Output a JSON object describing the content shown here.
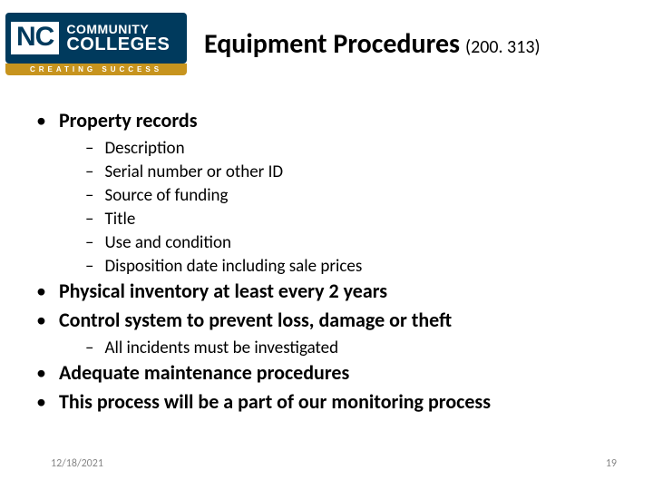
{
  "logo": {
    "nc": "NC",
    "line1": "COMMUNITY",
    "line2": "COLLEGES",
    "tagline": "CREATING SUCCESS",
    "bg_color": "#003a5d",
    "tagline_bg": "#c7941e",
    "text_color": "#ffffff"
  },
  "title": {
    "main": "Equipment Procedures",
    "code": "(200. 313)",
    "fontsize_main": 30,
    "fontsize_code": 20,
    "fontweight_main": 700
  },
  "bullets": {
    "b1": {
      "text": "Property records",
      "subs": [
        "Description",
        "Serial number or other ID",
        "Source of funding",
        "Title",
        "Use and condition",
        "Disposition date including sale prices"
      ]
    },
    "b2": {
      "text": "Physical inventory at least every 2 years"
    },
    "b3": {
      "text": "Control system to prevent loss, damage or theft",
      "subs": [
        "All incidents must be investigated"
      ]
    },
    "b4": {
      "text": "Adequate maintenance procedures"
    },
    "b5": {
      "text": "This process will be a part of our monitoring process"
    }
  },
  "footer": {
    "date": "12/18/2021",
    "page": "19",
    "color": "#888888",
    "fontsize": 12
  },
  "style": {
    "page_bg": "#ffffff",
    "text_color": "#000000",
    "l1_fontsize": 22,
    "l1_fontweight": 700,
    "l2_fontsize": 19,
    "l2_fontweight": 400,
    "bullet_l1_marker": "•",
    "bullet_l2_marker": "–"
  }
}
